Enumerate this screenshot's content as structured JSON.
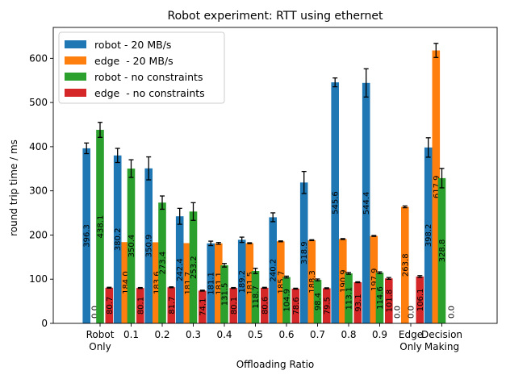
{
  "chart_data": {
    "type": "bar",
    "title": "Robot experiment: RTT using ethernet",
    "xlabel": "Offloading Ratio",
    "ylabel": "round trip time / ms",
    "ylim": [
      0,
      670
    ],
    "yticks": [
      0,
      100,
      200,
      300,
      400,
      500,
      600
    ],
    "categories": [
      "Robot\nOnly",
      "0.1",
      "0.2",
      "0.3",
      "0.4",
      "0.5",
      "0.6",
      "0.7",
      "0.8",
      "0.9",
      "Edge\nOnly",
      "Decision\nMaking"
    ],
    "legend_position": "top-left",
    "series": [
      {
        "name": "robot - 20 MB/s",
        "color": "#1f77b4",
        "values": [
          396.3,
          380.2,
          350.9,
          242.4,
          181.1,
          189.2,
          240.2,
          318.9,
          545.6,
          544.4,
          0.0,
          398.2
        ],
        "labels": [
          "396.3",
          "380.2",
          "350.9",
          "242.4",
          "181.1",
          "189.2",
          "240.2",
          "318.9",
          "545.6",
          "544.4",
          "0.0",
          "398.2"
        ],
        "errors": [
          12,
          16,
          26,
          18,
          5,
          6,
          10,
          25,
          10,
          32,
          0,
          22
        ]
      },
      {
        "name": "edge  - 20 MB/s",
        "color": "#ff7f0e",
        "values": [
          0.0,
          184.0,
          183.6,
          181.7,
          181.1,
          181.5,
          185.7,
          188.3,
          190.9,
          197.9,
          263.8,
          617.9
        ],
        "labels": [
          "0.0",
          "184.0",
          "183.6",
          "181.7",
          "181.1",
          "181.5",
          "185.7",
          "188.3",
          "190.9",
          "197.9",
          "263.8",
          "617.9"
        ],
        "errors": [
          0,
          0,
          0,
          0,
          2,
          1,
          1,
          1,
          1,
          1,
          2,
          16
        ]
      },
      {
        "name": "robot - no constraints",
        "color": "#2ca02c",
        "values": [
          438.1,
          350.4,
          273.4,
          253.2,
          131.5,
          118.7,
          104.9,
          98.4,
          113.1,
          114.6,
          0.0,
          328.8
        ],
        "labels": [
          "438.1",
          "350.4",
          "273.4",
          "253.2",
          "131.5",
          "118.7",
          "104.9",
          "98.4",
          "113.1",
          "114.6",
          "0.0",
          "328.8"
        ],
        "errors": [
          17,
          20,
          15,
          20,
          4,
          6,
          2,
          2,
          2,
          2,
          0,
          22
        ]
      },
      {
        "name": "edge  - no constraints",
        "color": "#d62728",
        "values": [
          80.7,
          80.1,
          81.7,
          74.1,
          80.1,
          80.6,
          78.6,
          79.5,
          93.1,
          101.8,
          106.1,
          0.0
        ],
        "labels": [
          "80.7",
          "80.1",
          "81.7",
          "74.1",
          "80.1",
          "80.6",
          "78.6",
          "79.5",
          "93.1",
          "101.8",
          "106.1",
          "0.0"
        ],
        "errors": [
          1,
          1,
          1,
          1,
          1,
          1,
          1,
          1,
          1,
          2,
          2,
          0
        ]
      }
    ],
    "grid": false
  }
}
